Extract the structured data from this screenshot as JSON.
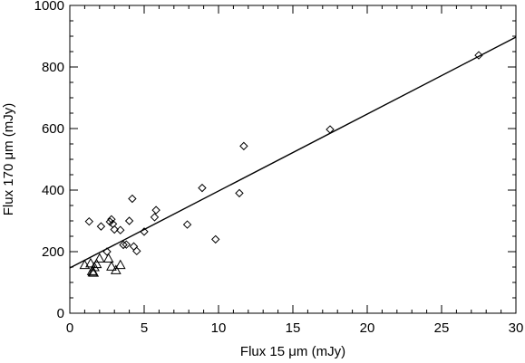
{
  "chart_data": {
    "type": "scatter",
    "title": "",
    "xlabel": "Flux 15 μm (mJy)",
    "ylabel": "Flux 170 μm (mJy)",
    "xlim": [
      0,
      30
    ],
    "ylim": [
      0,
      1000
    ],
    "x_ticks": [
      "0",
      "5",
      "10",
      "15",
      "20",
      "25",
      "30"
    ],
    "y_ticks": [
      "0",
      "200",
      "400",
      "600",
      "800",
      "1000"
    ],
    "grid": false,
    "legend": "none",
    "series": [
      {
        "marker": "diamond",
        "x": [
          1.3,
          2.1,
          2.5,
          2.7,
          2.8,
          2.9,
          3.0,
          3.4,
          3.6,
          3.8,
          4.0,
          4.2,
          4.3,
          4.5,
          5.0,
          5.7,
          5.8,
          7.9,
          8.9,
          9.8,
          11.4,
          11.7,
          17.5,
          27.5
        ],
        "y": [
          298,
          282,
          200,
          297,
          305,
          290,
          272,
          270,
          222,
          223,
          300,
          372,
          217,
          202,
          265,
          312,
          335,
          288,
          407,
          240,
          390,
          543,
          597,
          838
        ]
      },
      {
        "marker": "triangle",
        "x": [
          1.0,
          1.4,
          1.5,
          1.55,
          1.6,
          1.65,
          1.8,
          2.0,
          2.6,
          2.8,
          3.1,
          3.4
        ],
        "y": [
          157,
          162,
          137,
          133,
          132,
          150,
          160,
          178,
          178,
          152,
          140,
          157
        ]
      }
    ],
    "fit_line": {
      "x": [
        0,
        30
      ],
      "y": [
        147,
        897
      ]
    }
  }
}
